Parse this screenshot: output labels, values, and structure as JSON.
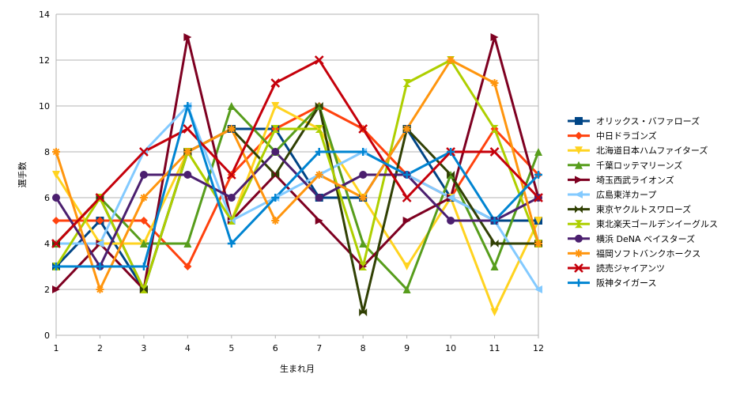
{
  "chart_data": {
    "type": "line",
    "title": "",
    "xlabel": "生まれ月",
    "ylabel": "選手数",
    "x": [
      1,
      2,
      3,
      4,
      5,
      6,
      7,
      8,
      9,
      10,
      11,
      12
    ],
    "xlabels": [
      "1",
      "2",
      "3",
      "4",
      "5",
      "6",
      "7",
      "8",
      "9",
      "10",
      "11",
      "12"
    ],
    "ylim": [
      0,
      14
    ],
    "yticks": [
      "0",
      "2",
      "4",
      "6",
      "8",
      "10",
      "12",
      "14"
    ],
    "grid": "horizontal",
    "legend": "right",
    "series": [
      {
        "name": "オリックス・バファローズ",
        "color": "#004586",
        "marker": "square",
        "values": [
          3,
          5,
          2,
          8,
          9,
          9,
          6,
          6,
          9,
          6,
          5,
          5
        ]
      },
      {
        "name": "中日ドラゴンズ",
        "color": "#ff420e",
        "marker": "diamond",
        "values": [
          5,
          5,
          5,
          3,
          7,
          9,
          10,
          9,
          7,
          6,
          9,
          7
        ]
      },
      {
        "name": "北海道日本ハムファイターズ",
        "color": "#ffd320",
        "marker": "triangle-down",
        "values": [
          7,
          4,
          4,
          8,
          5,
          10,
          9,
          6,
          3,
          6,
          1,
          5
        ]
      },
      {
        "name": "千葉ロッテマリーンズ",
        "color": "#579d1c",
        "marker": "triangle-up",
        "values": [
          4,
          6,
          4,
          4,
          10,
          8,
          10,
          4,
          2,
          7,
          3,
          8
        ]
      },
      {
        "name": "埼玉西武ライオンズ",
        "color": "#7e0021",
        "marker": "triangle-right",
        "values": [
          2,
          4,
          2,
          13,
          5,
          7,
          5,
          3,
          5,
          6,
          13,
          6
        ]
      },
      {
        "name": "広島東洋カープ",
        "color": "#83caff",
        "marker": "triangle-left",
        "values": [
          4,
          4,
          8,
          10,
          5,
          6,
          7,
          8,
          7,
          6,
          5,
          2
        ]
      },
      {
        "name": "東京ヤクルトスワローズ",
        "color": "#314004",
        "marker": "bowtie",
        "values": [
          4,
          6,
          2,
          8,
          9,
          7,
          10,
          1,
          9,
          7,
          4,
          4
        ]
      },
      {
        "name": "東北楽天ゴールデンイーグルス",
        "color": "#aecf00",
        "marker": "hourglass",
        "values": [
          3,
          6,
          2,
          8,
          5,
          9,
          9,
          3,
          11,
          12,
          9,
          4
        ]
      },
      {
        "name": "横浜 DeNA ベイスターズ",
        "color": "#4b1f6f",
        "marker": "circle",
        "values": [
          6,
          3,
          7,
          7,
          6,
          8,
          6,
          7,
          7,
          5,
          5,
          6
        ]
      },
      {
        "name": "福岡ソフトバンクホークス",
        "color": "#ff950e",
        "marker": "star",
        "values": [
          8,
          2,
          6,
          8,
          9,
          5,
          7,
          6,
          9,
          12,
          11,
          4
        ]
      },
      {
        "name": "読売ジャイアンツ",
        "color": "#c5000b",
        "marker": "x",
        "values": [
          4,
          6,
          8,
          9,
          7,
          11,
          12,
          9,
          6,
          8,
          8,
          6
        ]
      },
      {
        "name": "阪神タイガース",
        "color": "#0084d1",
        "marker": "plus",
        "values": [
          3,
          3,
          3,
          10,
          4,
          6,
          8,
          8,
          7,
          8,
          5,
          7
        ]
      }
    ]
  }
}
